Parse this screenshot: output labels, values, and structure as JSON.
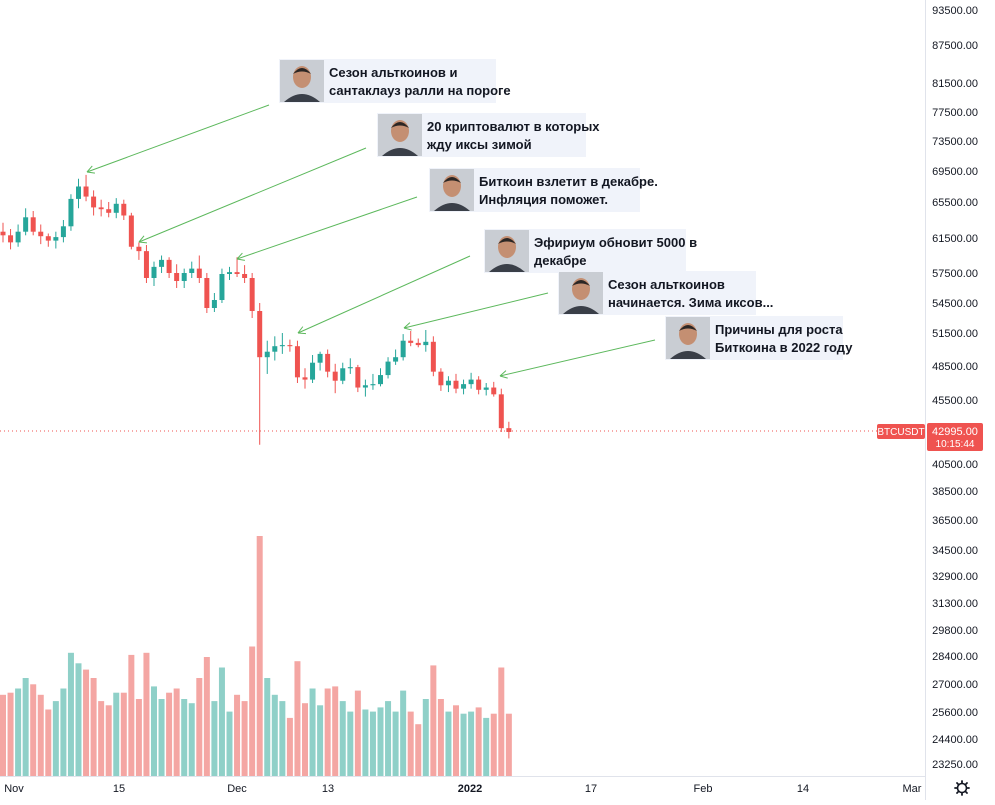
{
  "chart_data": {
    "type": "candlestick",
    "symbol": "BTCUSDT",
    "last_price": "42995.00",
    "countdown": "10:15:44",
    "y_ticks": [
      "93500.00",
      "87500.00",
      "81500.00",
      "77500.00",
      "73500.00",
      "69500.00",
      "65500.00",
      "61500.00",
      "57500.00",
      "54500.00",
      "51500.00",
      "48500.00",
      "45500.00",
      "40500.00",
      "38500.00",
      "36500.00",
      "34500.00",
      "32900.00",
      "31300.00",
      "29800.00",
      "28400.00",
      "27000.00",
      "25600.00",
      "24400.00",
      "23250.00"
    ],
    "x_ticks": [
      "Nov",
      "15",
      "Dec",
      "13",
      "2022",
      "17",
      "Feb",
      "14",
      "Mar"
    ],
    "candles": [
      {
        "o": 62200,
        "h": 63200,
        "l": 61000,
        "c": 61800
      },
      {
        "o": 61800,
        "h": 62500,
        "l": 60200,
        "c": 61000
      },
      {
        "o": 61000,
        "h": 63000,
        "l": 60500,
        "c": 62200
      },
      {
        "o": 62200,
        "h": 64800,
        "l": 61800,
        "c": 63800
      },
      {
        "o": 63800,
        "h": 64500,
        "l": 61800,
        "c": 62200
      },
      {
        "o": 62200,
        "h": 63000,
        "l": 60800,
        "c": 61700
      },
      {
        "o": 61700,
        "h": 62000,
        "l": 60500,
        "c": 61200
      },
      {
        "o": 61200,
        "h": 62200,
        "l": 60300,
        "c": 61600
      },
      {
        "o": 61600,
        "h": 63500,
        "l": 61000,
        "c": 62800
      },
      {
        "o": 62800,
        "h": 66500,
        "l": 62300,
        "c": 65900
      },
      {
        "o": 65900,
        "h": 68500,
        "l": 64800,
        "c": 67500
      },
      {
        "o": 67500,
        "h": 69000,
        "l": 65600,
        "c": 66200
      },
      {
        "o": 66200,
        "h": 67000,
        "l": 64000,
        "c": 64900
      },
      {
        "o": 64900,
        "h": 65800,
        "l": 63900,
        "c": 64700
      },
      {
        "o": 64700,
        "h": 65500,
        "l": 63800,
        "c": 64300
      },
      {
        "o": 64300,
        "h": 66000,
        "l": 63700,
        "c": 65300
      },
      {
        "o": 65300,
        "h": 65800,
        "l": 63500,
        "c": 64000
      },
      {
        "o": 64000,
        "h": 64300,
        "l": 60200,
        "c": 60500
      },
      {
        "o": 60500,
        "h": 61000,
        "l": 59000,
        "c": 60000
      },
      {
        "o": 60000,
        "h": 60700,
        "l": 56500,
        "c": 57000
      },
      {
        "o": 57000,
        "h": 58800,
        "l": 56200,
        "c": 58200
      },
      {
        "o": 58200,
        "h": 59500,
        "l": 57500,
        "c": 59000
      },
      {
        "o": 59000,
        "h": 59300,
        "l": 57000,
        "c": 57500
      },
      {
        "o": 57500,
        "h": 58500,
        "l": 56000,
        "c": 56700
      },
      {
        "o": 56700,
        "h": 58000,
        "l": 56000,
        "c": 57500
      },
      {
        "o": 57500,
        "h": 58800,
        "l": 57000,
        "c": 58000
      },
      {
        "o": 58000,
        "h": 59500,
        "l": 56500,
        "c": 57000
      },
      {
        "o": 57000,
        "h": 57500,
        "l": 53500,
        "c": 54000
      },
      {
        "o": 54000,
        "h": 55500,
        "l": 53600,
        "c": 54800
      },
      {
        "o": 54800,
        "h": 58000,
        "l": 54500,
        "c": 57400
      },
      {
        "o": 57400,
        "h": 58200,
        "l": 56800,
        "c": 57600
      },
      {
        "o": 57600,
        "h": 59300,
        "l": 57100,
        "c": 57400
      },
      {
        "o": 57400,
        "h": 58400,
        "l": 56500,
        "c": 57000
      },
      {
        "o": 57000,
        "h": 57500,
        "l": 53000,
        "c": 53700
      },
      {
        "o": 53700,
        "h": 54500,
        "l": 42000,
        "c": 49300
      },
      {
        "o": 49300,
        "h": 50800,
        "l": 47800,
        "c": 49800
      },
      {
        "o": 49800,
        "h": 51200,
        "l": 49000,
        "c": 50300
      },
      {
        "o": 50300,
        "h": 51500,
        "l": 49600,
        "c": 50400
      },
      {
        "o": 50400,
        "h": 50900,
        "l": 49800,
        "c": 50300
      },
      {
        "o": 50300,
        "h": 50800,
        "l": 47000,
        "c": 47500
      },
      {
        "o": 47500,
        "h": 48300,
        "l": 46500,
        "c": 47300
      },
      {
        "o": 47300,
        "h": 49500,
        "l": 47000,
        "c": 48800
      },
      {
        "o": 48800,
        "h": 49800,
        "l": 48100,
        "c": 49600
      },
      {
        "o": 49600,
        "h": 50000,
        "l": 47500,
        "c": 48000
      },
      {
        "o": 48000,
        "h": 48700,
        "l": 46100,
        "c": 47200
      },
      {
        "o": 47200,
        "h": 48800,
        "l": 46900,
        "c": 48300
      },
      {
        "o": 48300,
        "h": 49200,
        "l": 47800,
        "c": 48400
      },
      {
        "o": 48400,
        "h": 48600,
        "l": 46200,
        "c": 46600
      },
      {
        "o": 46600,
        "h": 47300,
        "l": 45800,
        "c": 46800
      },
      {
        "o": 46800,
        "h": 47800,
        "l": 46400,
        "c": 46900
      },
      {
        "o": 46900,
        "h": 48300,
        "l": 46700,
        "c": 47700
      },
      {
        "o": 47700,
        "h": 49300,
        "l": 47400,
        "c": 48900
      },
      {
        "o": 48900,
        "h": 50000,
        "l": 48600,
        "c": 49300
      },
      {
        "o": 49300,
        "h": 51400,
        "l": 49000,
        "c": 50800
      },
      {
        "o": 50800,
        "h": 51700,
        "l": 50300,
        "c": 50600
      },
      {
        "o": 50600,
        "h": 51000,
        "l": 50200,
        "c": 50400
      },
      {
        "o": 50400,
        "h": 51800,
        "l": 49800,
        "c": 50700
      },
      {
        "o": 50700,
        "h": 51200,
        "l": 47600,
        "c": 48000
      },
      {
        "o": 48000,
        "h": 48300,
        "l": 46300,
        "c": 46800
      },
      {
        "o": 46800,
        "h": 47600,
        "l": 46200,
        "c": 47200
      },
      {
        "o": 47200,
        "h": 47800,
        "l": 46100,
        "c": 46500
      },
      {
        "o": 46500,
        "h": 47300,
        "l": 46000,
        "c": 46900
      },
      {
        "o": 46900,
        "h": 47900,
        "l": 46500,
        "c": 47300
      },
      {
        "o": 47300,
        "h": 47600,
        "l": 46000,
        "c": 46400
      },
      {
        "o": 46400,
        "h": 47000,
        "l": 45900,
        "c": 46600
      },
      {
        "o": 46600,
        "h": 47100,
        "l": 45800,
        "c": 46000
      },
      {
        "o": 46000,
        "h": 46500,
        "l": 43000,
        "c": 43300
      },
      {
        "o": 43300,
        "h": 43800,
        "l": 42500,
        "c": 43000
      }
    ],
    "annotations": [
      {
        "line1": "Сезон альткоинов и",
        "line2": "сантаклауз ралли на пороге"
      },
      {
        "line1": "20 криптовалют в которых",
        "line2": "жду иксы зимой"
      },
      {
        "line1": "Биткоин взлетит в декабре.",
        "line2": "Инфляция поможет."
      },
      {
        "line1": "Эфириум обновит 5000 в",
        "line2": "декабре"
      },
      {
        "line1": "Сезон альткоинов",
        "line2": "начинается. Зима иксов..."
      },
      {
        "line1": "Причины для роста",
        "line2": "Биткоина в 2022 году"
      }
    ],
    "colors": {
      "up": "#26a69a",
      "down": "#ef5350",
      "up_volume": "#8fd0c8",
      "down_volume": "#f4a6a3",
      "arrow": "#5cb85c",
      "label_bg": "#ef5350",
      "annotation_bg": "#f0f3fa"
    },
    "grid": false
  }
}
